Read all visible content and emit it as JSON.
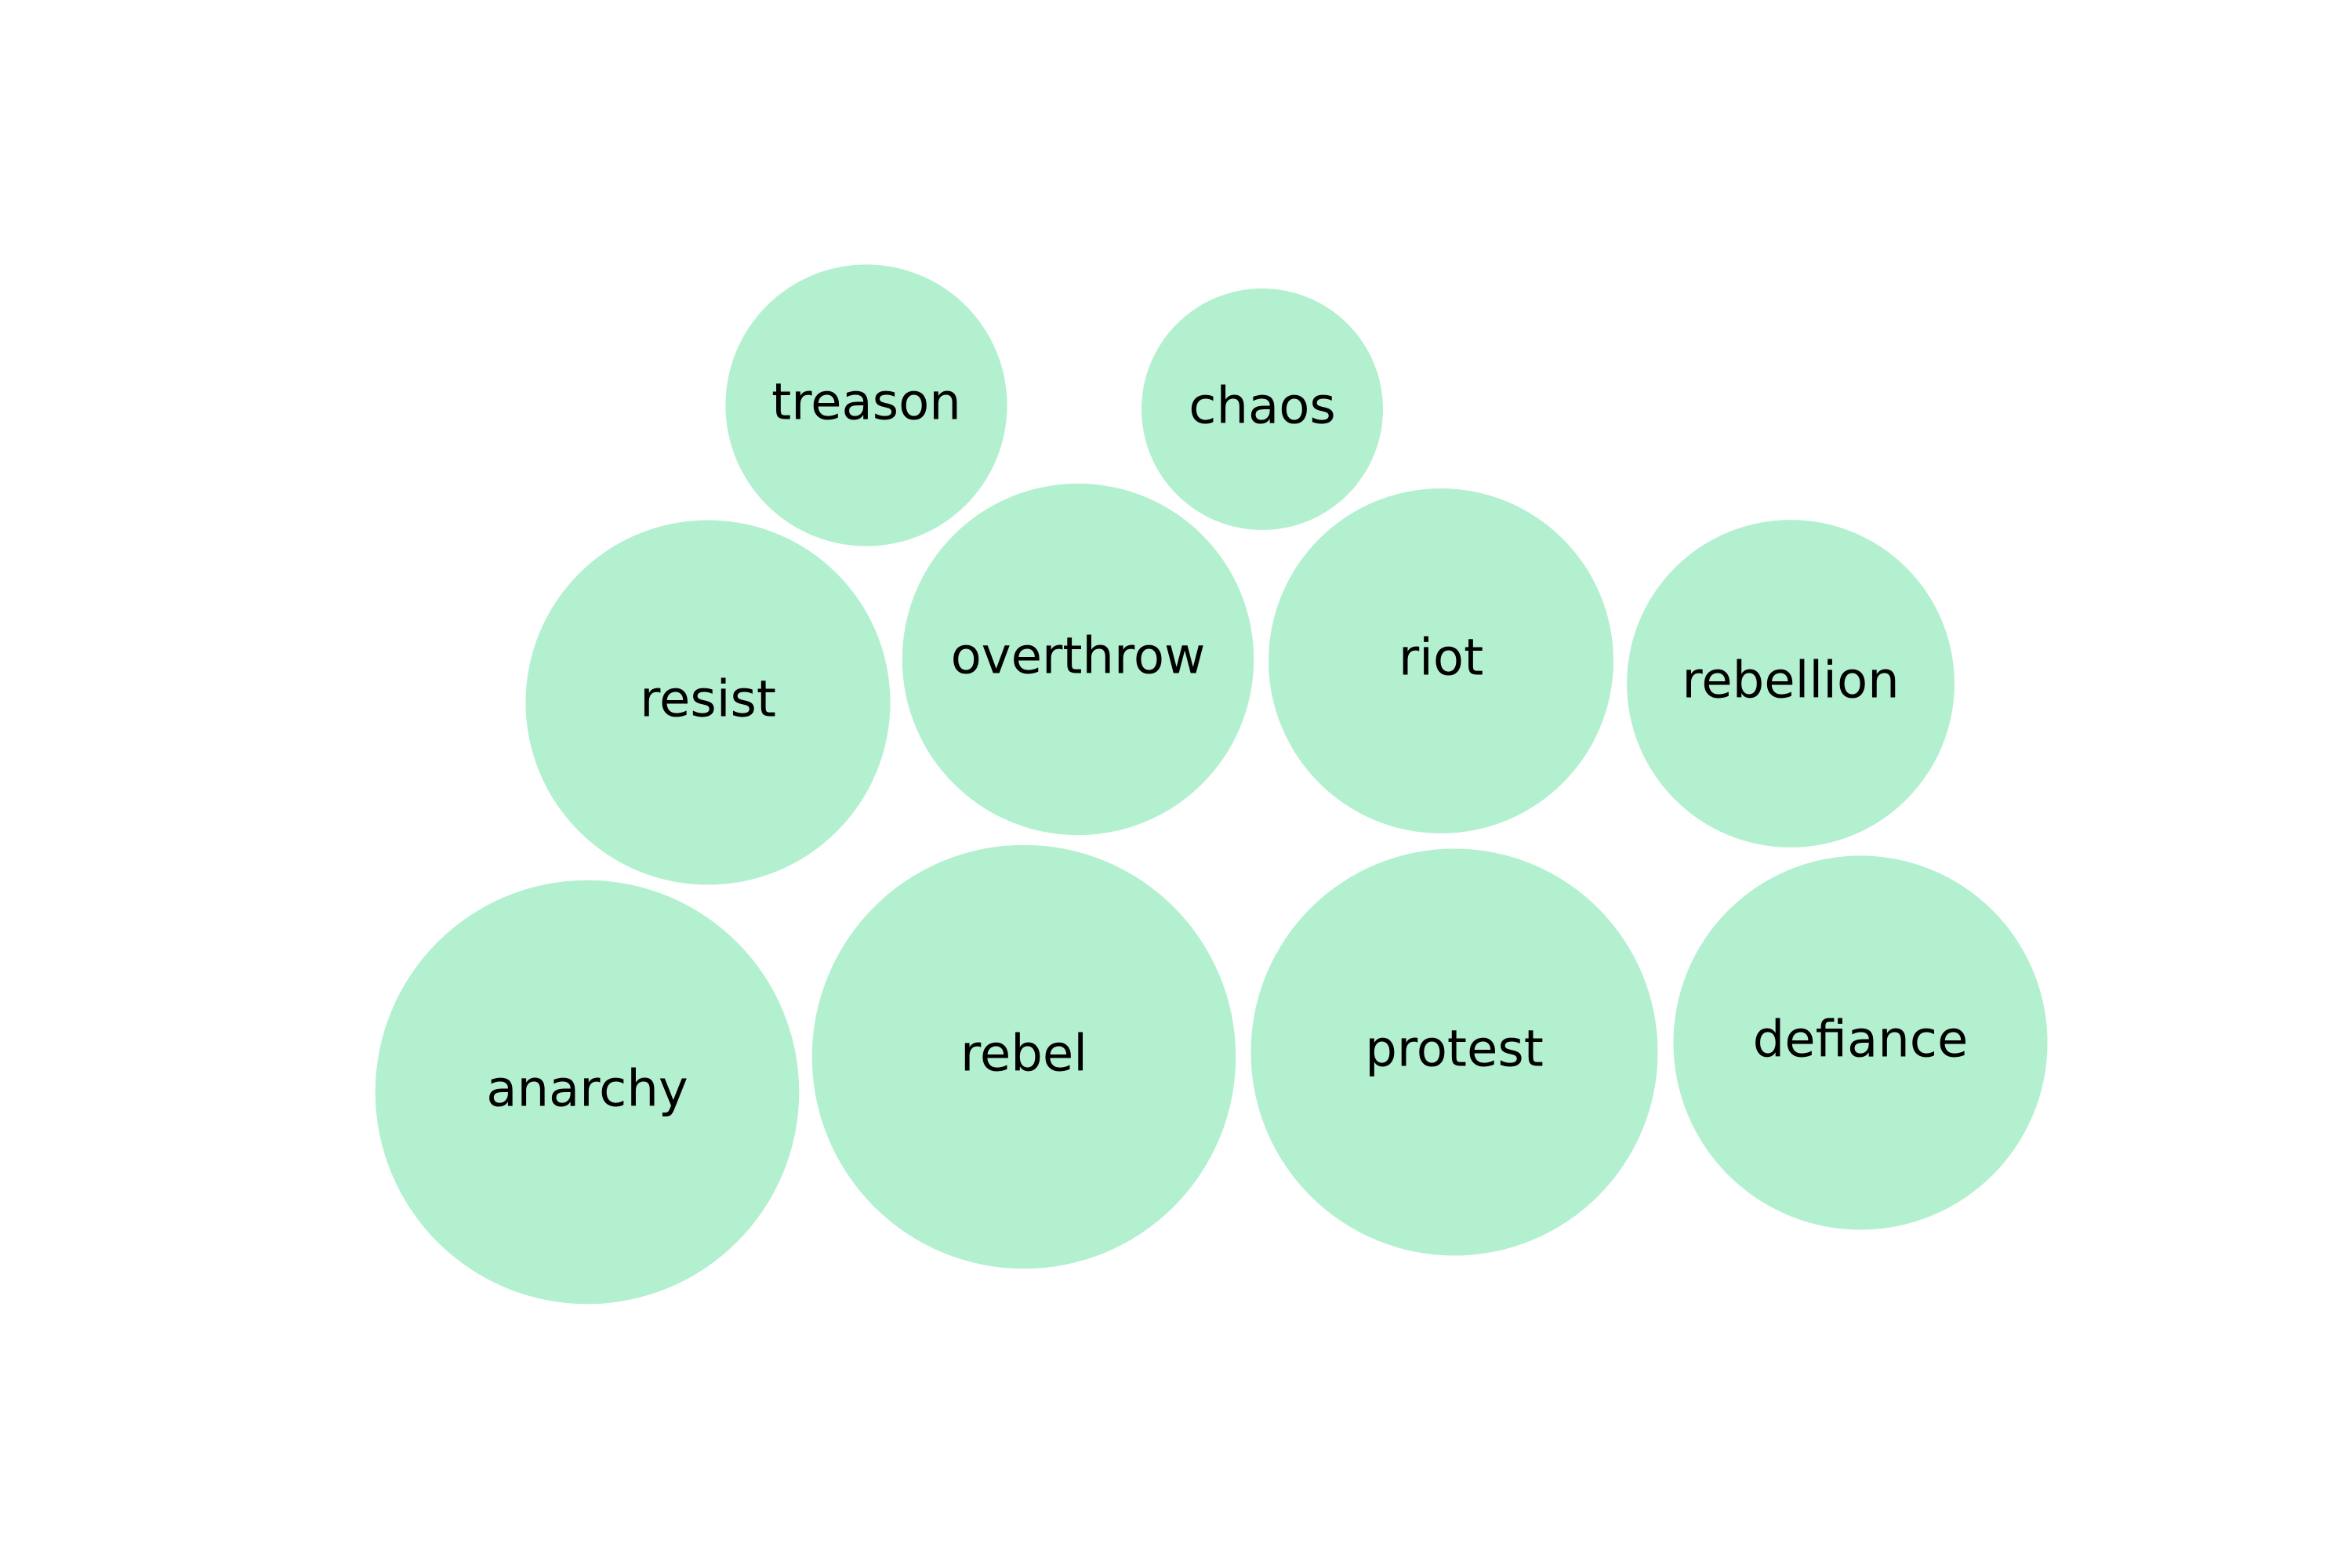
{
  "chart_data": {
    "type": "bubble",
    "bubble_color": "#b2f0d0",
    "label_color": "#000000",
    "bubbles": [
      {
        "label": "treason",
        "value": 34
      },
      {
        "label": "chaos",
        "value": 25
      },
      {
        "label": "resist",
        "value": 57
      },
      {
        "label": "overthrow",
        "value": 53
      },
      {
        "label": "riot",
        "value": 51
      },
      {
        "label": "rebellion",
        "value": 46
      },
      {
        "label": "anarchy",
        "value": 77
      },
      {
        "label": "rebel",
        "value": 77
      },
      {
        "label": "protest",
        "value": 71
      },
      {
        "label": "defiance",
        "value": 60
      }
    ]
  }
}
